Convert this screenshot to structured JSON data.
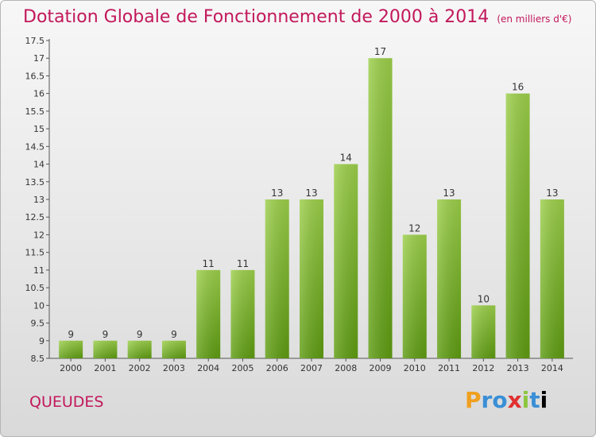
{
  "header": {
    "title": "Dotation Globale de Fonctionnement de 2000 à 2014",
    "unit": "(en milliers d'€)"
  },
  "footer": {
    "place": "QUEUDES",
    "logo": "Proxiti"
  },
  "colors": {
    "bar_top": "#9ccf4a",
    "bar_bottom": "#5e9c12",
    "title": "#c2185b"
  },
  "chart_data": {
    "type": "bar",
    "title": "Dotation Globale de Fonctionnement de 2000 à 2014",
    "xlabel": "",
    "ylabel": "",
    "categories": [
      "2000",
      "2001",
      "2002",
      "2003",
      "2004",
      "2005",
      "2006",
      "2007",
      "2008",
      "2009",
      "2010",
      "2011",
      "2012",
      "2013",
      "2014"
    ],
    "values": [
      9,
      9,
      9,
      9,
      11,
      11,
      13,
      13,
      14,
      17,
      12,
      13,
      10,
      16,
      13
    ],
    "ylim": [
      8.5,
      17.5
    ],
    "yticks": [
      "8.5",
      "9",
      "9.5",
      "10",
      "10.5",
      "11",
      "11.5",
      "12",
      "12.5",
      "13",
      "13.5",
      "14",
      "14.5",
      "15",
      "15.5",
      "16",
      "16.5",
      "17",
      "17.5"
    ],
    "grid": false,
    "legend": "none"
  }
}
